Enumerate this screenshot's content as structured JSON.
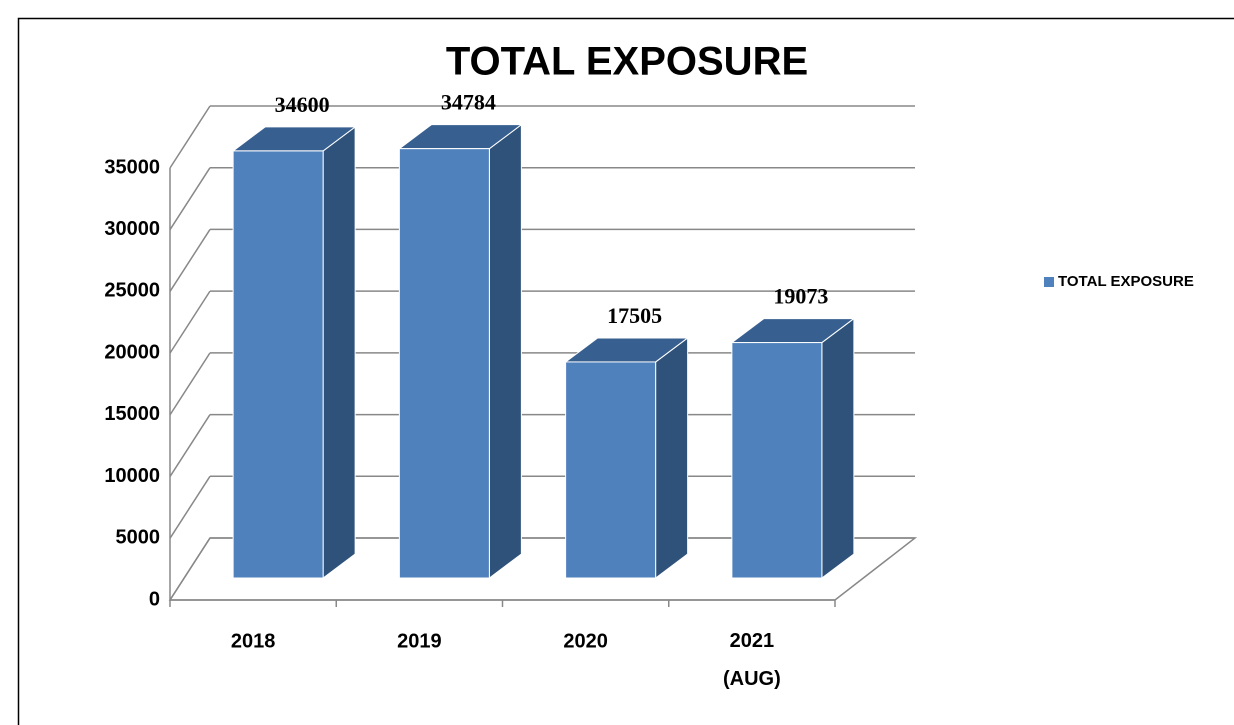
{
  "chart_data": {
    "type": "bar3d",
    "title": "TOTAL EXPOSURE",
    "categories": [
      "2018",
      "2019",
      "2020",
      "2021 (AUG)"
    ],
    "series": [
      {
        "name": "TOTAL EXPOSURE",
        "color": "#4f81bd",
        "values": [
          34600,
          34784,
          17505,
          19073
        ]
      }
    ],
    "ylim": [
      0,
      35000
    ],
    "yticks": [
      0,
      5000,
      10000,
      15000,
      20000,
      25000,
      30000,
      35000
    ],
    "grid": true,
    "legend": "right"
  }
}
